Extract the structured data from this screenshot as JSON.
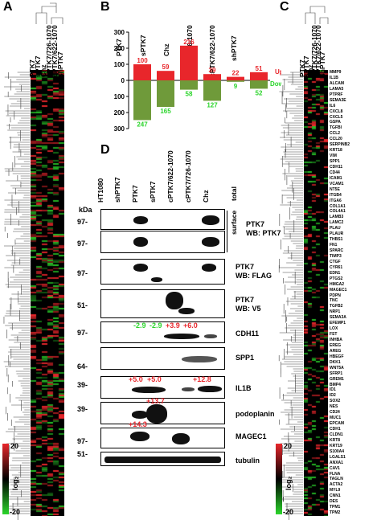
{
  "panel_labels": {
    "a": "A",
    "b": "B",
    "c": "C",
    "d": "D"
  },
  "heatmap_a": {
    "columns": [
      "PTK7",
      "sPTK7",
      "Chz",
      "cPTK7/726-1070",
      "cPTK7/622-1070",
      "shPTK7"
    ],
    "scale_label": "log₂",
    "scale_max": "20",
    "scale_min": "-20"
  },
  "heatmap_c": {
    "columns": [
      "PTK7",
      "sPTK7",
      "Chz",
      "cPTK7/726-1070",
      "cPTK7/622-1070",
      "shPTK7"
    ],
    "scale_label": "log₂",
    "scale_max": "20",
    "scale_min": "-20",
    "genes": [
      "MMP9",
      "IL1B",
      "ALCAM",
      "LAMA5",
      "PTPRF",
      "SEMA3E",
      "IL6",
      "CXCL8",
      "CXCL5",
      "GSPA",
      "TGFBI",
      "CCL2",
      "CCL20",
      "SERPINB2",
      "KRT18",
      "VIM",
      "SPP1",
      "CDH11",
      "CD44",
      "ICAM1",
      "VCAM1",
      "NT5E",
      "ITGB4",
      "ITGA6",
      "COL1A1",
      "COL4A1",
      "LAMB3",
      "LAMC2",
      "PLAU",
      "PLAUR",
      "THBS1",
      "FN1",
      "SPARC",
      "TIMP3",
      "CTGF",
      "CYR61",
      "EDN1",
      "PTGS2",
      "HMGA2",
      "MAGEC1",
      "PDPN",
      "TNC",
      "TGFB2",
      "NRP1",
      "SEMA3A",
      "EFEMP1",
      "LOX",
      "FST",
      "INHBA",
      "EREG",
      "AREG",
      "HBEGF",
      "DKK1",
      "WNT5A",
      "SFRP1",
      "GREM1",
      "BMP4",
      "ID1",
      "ID2",
      "SOX2",
      "NES",
      "CD24",
      "MUC1",
      "EPCAM",
      "CDH1",
      "CLDN1",
      "KRT8",
      "KRT19",
      "S100A4",
      "LGALS1",
      "ANXA1",
      "CAV1",
      "FLNA",
      "TAGLN",
      "ACTA2",
      "MYL9",
      "CNN1",
      "DES",
      "TPM1",
      "TPM2"
    ]
  },
  "chart_data": {
    "type": "bar",
    "categories": [
      "PTK7",
      "sPTK7",
      "Chz",
      "cPTK7/726-1070",
      "cPTK7/622-1070",
      "shPTK7"
    ],
    "series": [
      {
        "name": "Up",
        "values": [
          100,
          59,
          216,
          39,
          22,
          51
        ]
      },
      {
        "name": "Down",
        "values": [
          247,
          165,
          58,
          127,
          9,
          52
        ]
      }
    ],
    "ylim": [
      -300,
      300
    ],
    "yticks": [
      "300",
      "200",
      "100",
      "0",
      "100",
      "200",
      "300"
    ],
    "colors": {
      "Up": "#e8262b",
      "Down": "#6f9a3a",
      "up_text": "#e8262b",
      "down_text": "#2bd52b"
    }
  },
  "blot_d": {
    "lanes": [
      "HT1080",
      "shPTK7",
      "PTK7",
      "sPTK7",
      "cPTK7/622-1070",
      "cPTK7/726-1070",
      "Chz"
    ],
    "kda_label": "kDa",
    "panels": [
      {
        "mw": "97-",
        "label": "",
        "fold_changes": []
      },
      {
        "mw": "97-",
        "label": "PTK7\nWB: FLAG",
        "fold_changes": []
      },
      {
        "mw": "51-",
        "label": "PTK7\nWB: V5",
        "fold_changes": []
      },
      {
        "mw": "97-",
        "label": "CDH11",
        "fold_changes": [
          "-2.9",
          "-2.9",
          "+3.9",
          "+6.0"
        ]
      },
      {
        "mw": "",
        "label": "SPP1",
        "fold_changes": []
      },
      {
        "mw": "39-",
        "label": "IL1B",
        "fold_changes": [
          "+5.0",
          "+5.0",
          "+12.8"
        ]
      },
      {
        "mw": "39-",
        "label": "podoplanin",
        "fold_changes": [
          "+13.7"
        ]
      },
      {
        "mw": "97-",
        "label": "MAGEC1",
        "fold_changes": [
          "+14.3"
        ]
      },
      {
        "mw": "51-",
        "label": "tubulin",
        "fold_changes": []
      }
    ],
    "ptk7_top": {
      "mw_total": "97-",
      "total": "total",
      "surface": "surface",
      "wb": "PTK7\nWB: PTK7"
    },
    "mw_extra": {
      "spp1": "64-"
    }
  }
}
